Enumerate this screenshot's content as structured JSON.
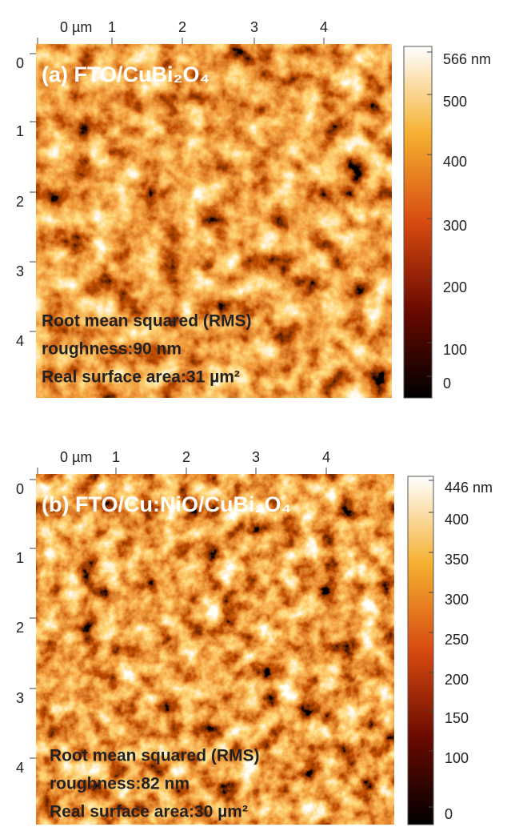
{
  "panels": [
    {
      "title": "(a) FTO/CuBi₂O₄",
      "x_ticks": [
        "0 µm",
        "1",
        "2",
        "3",
        "4"
      ],
      "y_ticks": [
        "0",
        "1",
        "2",
        "3",
        "4"
      ],
      "colorbar_ticks": [
        "566 nm",
        "500",
        "400",
        "300",
        "200",
        "100",
        "0"
      ],
      "stats": [
        "Root mean squared (RMS)",
        "roughness:90 nm",
        "Real surface area:31 µm²"
      ]
    },
    {
      "title": "(b) FTO/Cu:NiO/CuBi₂O₄",
      "x_ticks": [
        "0 µm",
        "1",
        "2",
        "3",
        "4"
      ],
      "y_ticks": [
        "0",
        "1",
        "2",
        "3",
        "4"
      ],
      "colorbar_ticks": [
        "446 nm",
        "400",
        "350",
        "300",
        "250",
        "200",
        "150",
        "100",
        "0"
      ],
      "stats": [
        "Root mean squared (RMS)",
        "roughness:82 nm",
        "Real surface area:30 µm²"
      ]
    }
  ]
}
